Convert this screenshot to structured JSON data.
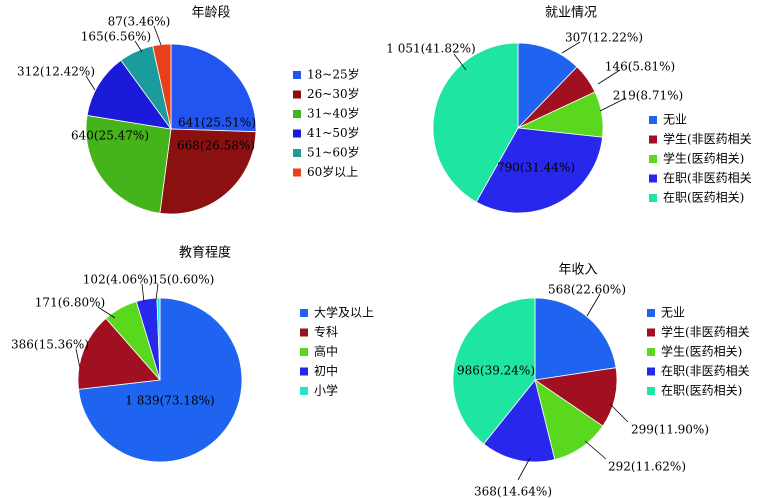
{
  "chart_data": [
    {
      "type": "pie",
      "title": "年龄段",
      "series": [
        {
          "categories": [
            "18~25岁",
            "26~30岁",
            "31~40岁",
            "41~50岁",
            "51~60岁",
            "60岁以上"
          ],
          "values": [
            641,
            668,
            640,
            312,
            165,
            87
          ],
          "labels": [
            "641(25.51%)",
            "668(26.58%)",
            "640(25.47%)",
            "312(12.42%)",
            "165(6.56%)",
            "87(3.46%)"
          ],
          "colors": [
            "#2255f0",
            "#8b1010",
            "#44b41a",
            "#1a1ad8",
            "#1a9c9c",
            "#e8401a"
          ]
        }
      ],
      "legend_position": "right"
    },
    {
      "type": "pie",
      "title": "就业情况",
      "series": [
        {
          "categories": [
            "无业",
            "学生(非医药相关",
            "学生(医药相关)",
            "在职(非医药相关",
            "在职(医药相关)"
          ],
          "values": [
            307,
            146,
            219,
            790,
            1051
          ],
          "labels": [
            "307(12.22%)",
            "146(5.81%)",
            "219(8.71%)",
            "790(31.44%)",
            "1 051(41.82%)"
          ],
          "colors": [
            "#1e64f0",
            "#a01020",
            "#5ad81e",
            "#2828ec",
            "#1ee6a0"
          ]
        }
      ],
      "legend_position": "right"
    },
    {
      "type": "pie",
      "title": "教育程度",
      "series": [
        {
          "categories": [
            "大学及以上",
            "专科",
            "高中",
            "初中",
            "小学"
          ],
          "values": [
            1839,
            386,
            171,
            102,
            15
          ],
          "labels": [
            "1 839(73.18%)",
            "386(15.36%)",
            "171(6.80%)",
            "102(4.06%)",
            "15(0.60%)"
          ],
          "colors": [
            "#1e64f0",
            "#a01020",
            "#5ad81e",
            "#2828ec",
            "#1ee6c8"
          ]
        }
      ],
      "legend_position": "right"
    },
    {
      "type": "pie",
      "title": "年收入",
      "series": [
        {
          "categories": [
            "无业",
            "学生(非医药相关",
            "学生(医药相关)",
            "在职(非医药相关",
            "在职(医药相关)"
          ],
          "values": [
            568,
            299,
            292,
            368,
            986
          ],
          "labels": [
            "568(22.60%)",
            "299(11.90%)",
            "292(11.62%)",
            "368(14.64%)",
            "986(39.24%)"
          ],
          "colors": [
            "#1e64f0",
            "#a01020",
            "#5ad81e",
            "#2828ec",
            "#1ee6a0"
          ]
        }
      ],
      "legend_position": "right"
    }
  ]
}
